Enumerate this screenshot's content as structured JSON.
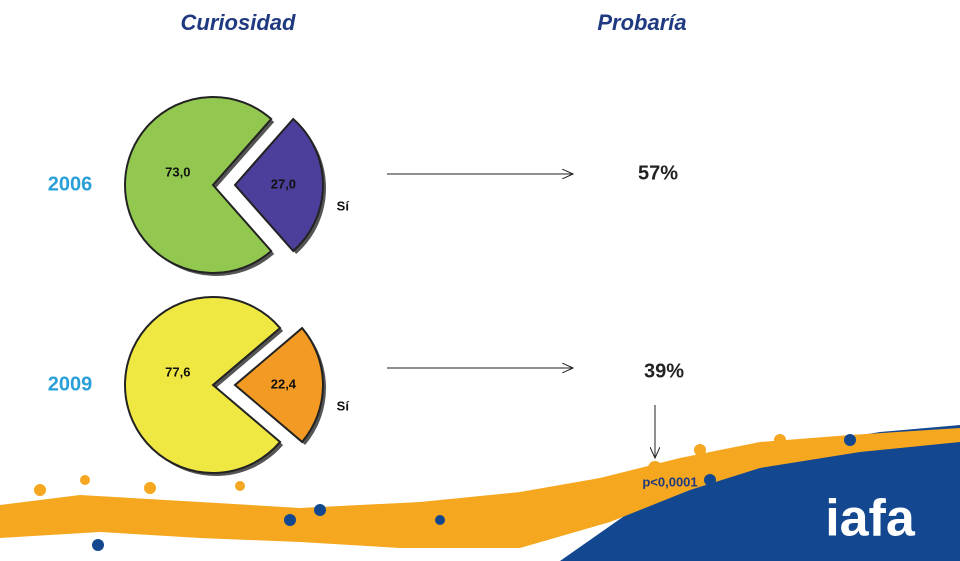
{
  "headers": [
    "Curiosidad",
    "Probaría"
  ],
  "chart_data": [
    {
      "type": "pie",
      "title": "2006",
      "categories": [
        null,
        "Sí"
      ],
      "values": [
        73,
        27
      ],
      "value_labels": [
        "73,0",
        "27,0"
      ],
      "colors": [
        "#92c84f",
        "#4b3f9b"
      ]
    },
    {
      "type": "pie",
      "title": "2009",
      "categories": [
        null,
        "Sí"
      ],
      "values": [
        77.6,
        22.4
      ],
      "value_labels": [
        "77,6",
        "22,4"
      ],
      "colors": [
        "#f0e842",
        "#f39a24"
      ]
    }
  ],
  "probaria": [
    "57%",
    "39%"
  ],
  "note": "p<0,0001",
  "logo": "iafa"
}
